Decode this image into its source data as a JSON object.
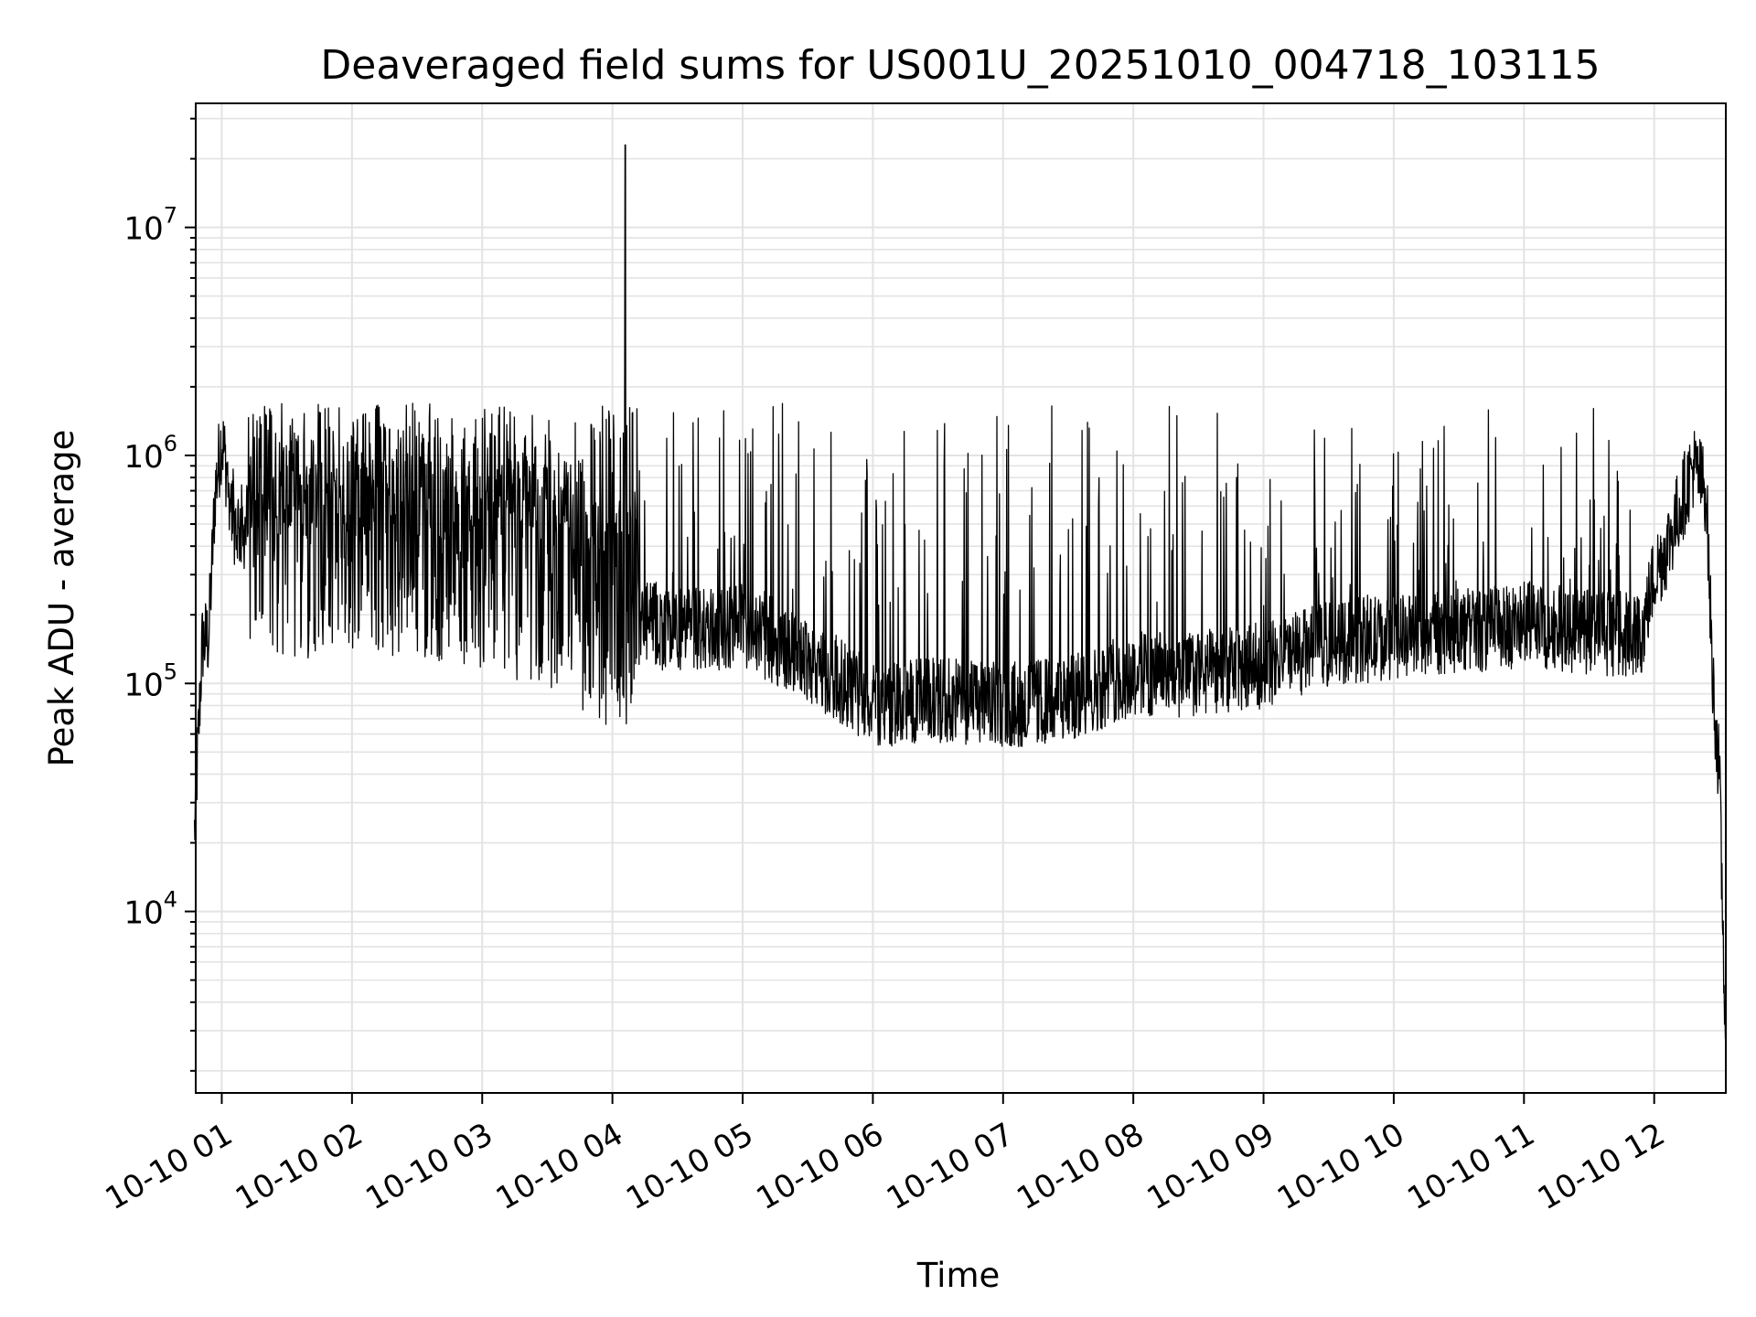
{
  "chart_data": {
    "type": "line",
    "title": "Deaveraged field sums for US001U_20251010_004718_103115",
    "xlabel": "Time",
    "ylabel": "Peak ADU - average",
    "yscale": "log",
    "ylim": [
      1600,
      35000000
    ],
    "xlim_hours": [
      0.8,
      12.55
    ],
    "grid": true,
    "x_ticks": [
      {
        "hour": 1,
        "label": "10-10 01"
      },
      {
        "hour": 2,
        "label": "10-10 02"
      },
      {
        "hour": 3,
        "label": "10-10 03"
      },
      {
        "hour": 4,
        "label": "10-10 04"
      },
      {
        "hour": 5,
        "label": "10-10 05"
      },
      {
        "hour": 6,
        "label": "10-10 06"
      },
      {
        "hour": 7,
        "label": "10-10 07"
      },
      {
        "hour": 8,
        "label": "10-10 08"
      },
      {
        "hour": 9,
        "label": "10-10 09"
      },
      {
        "hour": 10,
        "label": "10-10 10"
      },
      {
        "hour": 11,
        "label": "10-10 11"
      },
      {
        "hour": 12,
        "label": "10-10 12"
      }
    ],
    "y_ticks": [
      {
        "value": 10000,
        "base": "10",
        "exp": "4"
      },
      {
        "value": 100000,
        "base": "10",
        "exp": "5"
      },
      {
        "value": 1000000,
        "base": "10",
        "exp": "6"
      },
      {
        "value": 10000000,
        "base": "10",
        "exp": "7"
      }
    ],
    "series": [
      {
        "name": "Peak ADU - average",
        "color": "#000000",
        "envelope_hours": [
          0.79,
          0.85,
          0.9,
          0.95,
          1.0,
          1.1,
          1.3,
          1.6,
          2.0,
          2.5,
          3.0,
          3.5,
          4.0,
          4.5,
          5.0,
          5.5,
          6.0,
          6.5,
          7.0,
          7.5,
          8.0,
          8.5,
          9.0,
          9.5,
          10.0,
          10.5,
          11.0,
          11.5,
          11.9,
          12.0,
          12.1,
          12.2,
          12.3,
          12.4,
          12.45,
          12.5,
          12.55
        ],
        "envelope_values": [
          22000,
          150000,
          160000,
          700000,
          1200000,
          500000,
          450000,
          400000,
          450000,
          400000,
          350000,
          300000,
          200000,
          170000,
          180000,
          130000,
          80000,
          85000,
          80000,
          85000,
          110000,
          110000,
          120000,
          150000,
          160000,
          170000,
          180000,
          170000,
          160000,
          300000,
          400000,
          600000,
          900000,
          700000,
          100000,
          40000,
          2500
        ],
        "noise_floor": 55000,
        "typical_spike_max": 1700000,
        "peak": {
          "hour": 4.1,
          "value": 23000000
        }
      }
    ]
  }
}
